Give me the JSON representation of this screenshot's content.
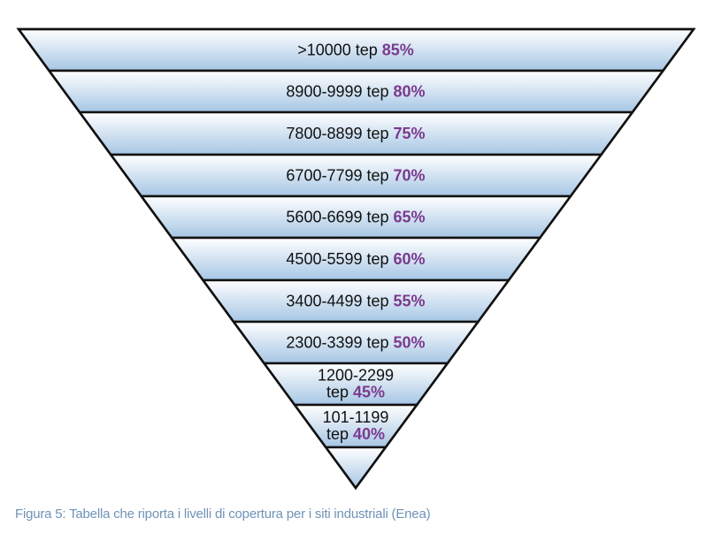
{
  "funnel": {
    "levels": [
      {
        "range": ">10000",
        "unit": "tep",
        "percent": "85%"
      },
      {
        "range": "8900-9999",
        "unit": "tep",
        "percent": "80%"
      },
      {
        "range": "7800-8899",
        "unit": "tep",
        "percent": "75%"
      },
      {
        "range": "6700-7799",
        "unit": "tep",
        "percent": "70%"
      },
      {
        "range": "5600-6699",
        "unit": "tep",
        "percent": "65%"
      },
      {
        "range": "4500-5599",
        "unit": "tep",
        "percent": "60%"
      },
      {
        "range": "3400-4499",
        "unit": "tep",
        "percent": "55%"
      },
      {
        "range": "2300-3399",
        "unit": "tep",
        "percent": "50%"
      },
      {
        "range": "1200-2299",
        "unit": "tep",
        "percent": "45%"
      },
      {
        "range": "101-1199",
        "unit": "tep",
        "percent": "40%"
      }
    ]
  },
  "caption": "Figura 5: Tabella che riporta i livelli di copertura per i siti industriali (Enea)",
  "colors": {
    "band_top": "#ffffff",
    "band_bottom": "#a6c6e4",
    "outline": "#111111",
    "percent": "#7b3a8e",
    "caption": "#6f93b8"
  }
}
